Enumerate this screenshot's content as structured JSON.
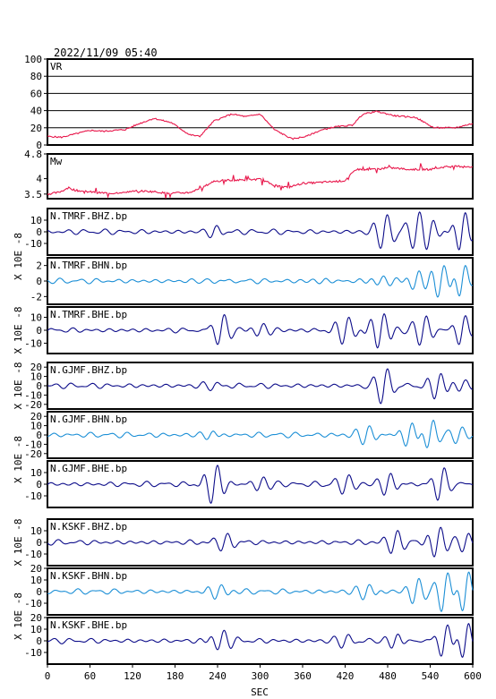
{
  "header": {
    "timestamp": "2022/11/09 05:40"
  },
  "colors": {
    "frame": "#000000",
    "vr_mw": "#e8174b",
    "bhz_bhe": "#0d0d8a",
    "bhn": "#1c8fd6"
  },
  "chart_data": {
    "type": "line",
    "xlabel": "SEC",
    "xlim": [
      0,
      600
    ],
    "xticks": [
      "0",
      "60",
      "120",
      "180",
      "240",
      "300",
      "360",
      "420",
      "480",
      "540",
      "600"
    ],
    "panels": [
      {
        "id": "vr",
        "label": "VR",
        "ylim": [
          0,
          100
        ],
        "yticks": [
          100,
          80,
          60,
          40,
          20,
          0
        ],
        "grid": true,
        "color": "#e8174b",
        "points": [
          [
            0,
            10
          ],
          [
            20,
            9
          ],
          [
            40,
            13
          ],
          [
            60,
            17
          ],
          [
            80,
            16
          ],
          [
            110,
            18
          ],
          [
            130,
            25
          ],
          [
            150,
            31
          ],
          [
            175,
            26
          ],
          [
            200,
            12
          ],
          [
            215,
            10
          ],
          [
            235,
            28
          ],
          [
            260,
            36
          ],
          [
            280,
            33
          ],
          [
            300,
            36
          ],
          [
            320,
            18
          ],
          [
            345,
            7
          ],
          [
            365,
            10
          ],
          [
            385,
            17
          ],
          [
            405,
            21
          ],
          [
            430,
            23
          ],
          [
            445,
            36
          ],
          [
            465,
            39
          ],
          [
            490,
            34
          ],
          [
            520,
            32
          ],
          [
            545,
            20
          ],
          [
            575,
            20
          ],
          [
            600,
            25
          ]
        ]
      },
      {
        "id": "mw",
        "label": "Mw",
        "ylim": [
          3.35,
          4.8
        ],
        "yticks": [
          4.8,
          4.0,
          3.5
        ],
        "grid": false,
        "color": "#e8174b",
        "points": [
          [
            0,
            3.5
          ],
          [
            15,
            3.55
          ],
          [
            30,
            3.7
          ],
          [
            40,
            3.62
          ],
          [
            55,
            3.58
          ],
          [
            70,
            3.55
          ],
          [
            90,
            3.52
          ],
          [
            110,
            3.57
          ],
          [
            130,
            3.6
          ],
          [
            150,
            3.58
          ],
          [
            170,
            3.52
          ],
          [
            200,
            3.55
          ],
          [
            218,
            3.7
          ],
          [
            235,
            3.92
          ],
          [
            255,
            3.95
          ],
          [
            280,
            3.96
          ],
          [
            300,
            3.98
          ],
          [
            325,
            3.75
          ],
          [
            340,
            3.72
          ],
          [
            360,
            3.85
          ],
          [
            380,
            3.87
          ],
          [
            400,
            3.9
          ],
          [
            420,
            3.93
          ],
          [
            435,
            4.3
          ],
          [
            460,
            4.3
          ],
          [
            485,
            4.35
          ],
          [
            510,
            4.3
          ],
          [
            540,
            4.3
          ],
          [
            560,
            4.38
          ],
          [
            585,
            4.4
          ],
          [
            600,
            4.38
          ]
        ]
      },
      {
        "id": "p3",
        "label": "N.TMRF.BHZ.bp",
        "ylim": [
          -20,
          20
        ],
        "yticks": [
          10,
          0,
          -10
        ],
        "color": "#0d0d8a",
        "seed": 3,
        "events": [
          [
            235,
            5,
            14
          ],
          [
            475,
            16,
            18
          ],
          [
            520,
            11,
            18
          ],
          [
            540,
            10,
            18
          ],
          [
            585,
            18,
            14
          ]
        ]
      },
      {
        "id": "p4",
        "label": "N.TMRF.BHN.bp",
        "ylim": [
          -3,
          3
        ],
        "yticks": [
          2,
          0,
          -2
        ],
        "color": "#1c8fd6",
        "seed": 7,
        "events": [
          [
            240,
            0.45,
            16
          ],
          [
            390,
            0.3,
            20
          ],
          [
            470,
            0.6,
            18
          ],
          [
            520,
            1.2,
            16
          ],
          [
            555,
            2.2,
            16
          ],
          [
            585,
            2.4,
            12
          ]
        ]
      },
      {
        "id": "p5",
        "label": "N.TMRF.BHE.bp",
        "ylim": [
          -18,
          18
        ],
        "yticks": [
          10,
          0,
          -10
        ],
        "color": "#0d0d8a",
        "seed": 11,
        "events": [
          [
            245,
            13,
            16
          ],
          [
            300,
            5,
            18
          ],
          [
            420,
            10,
            18
          ],
          [
            470,
            14,
            18
          ],
          [
            530,
            12,
            18
          ],
          [
            585,
            13,
            14
          ]
        ]
      },
      {
        "id": "p6",
        "label": "N.GJMF.BHZ.bp",
        "ylim": [
          -25,
          25
        ],
        "yticks": [
          20,
          10,
          0,
          -10,
          -20
        ],
        "color": "#0d0d8a",
        "seed": 17,
        "events": [
          [
            235,
            4,
            18
          ],
          [
            475,
            20,
            16
          ],
          [
            550,
            14,
            16
          ],
          [
            585,
            5,
            16
          ]
        ]
      },
      {
        "id": "p7",
        "label": "N.GJMF.BHN.bp",
        "ylim": [
          -25,
          25
        ],
        "yticks": [
          20,
          10,
          0,
          -10,
          -20
        ],
        "color": "#1c8fd6",
        "seed": 23,
        "events": [
          [
            230,
            5,
            16
          ],
          [
            450,
            10,
            18
          ],
          [
            510,
            14,
            16
          ],
          [
            540,
            20,
            14
          ],
          [
            580,
            7,
            16
          ]
        ]
      },
      {
        "id": "p8",
        "label": "N.GJMF.BHE.bp",
        "ylim": [
          -20,
          20
        ],
        "yticks": [
          10,
          0,
          -10
        ],
        "color": "#0d0d8a",
        "seed": 29,
        "events": [
          [
            235,
            17,
            16
          ],
          [
            300,
            7,
            18
          ],
          [
            420,
            8,
            18
          ],
          [
            480,
            10,
            16
          ],
          [
            555,
            15,
            14
          ]
        ]
      },
      {
        "id": "p9",
        "label": "N.KSKF.BHZ.bp",
        "ylim": [
          -20,
          20
        ],
        "yticks": [
          10,
          0,
          -10
        ],
        "color": "#0d0d8a",
        "seed": 31,
        "events": [
          [
            250,
            6,
            18
          ],
          [
            490,
            10,
            18
          ],
          [
            550,
            14,
            16
          ],
          [
            590,
            8,
            14
          ]
        ]
      },
      {
        "id": "p10",
        "label": "N.KSKF.BHN.bp",
        "ylim": [
          -20,
          20
        ],
        "yticks": [
          20,
          10,
          0,
          -10
        ],
        "color": "#1c8fd6",
        "seed": 37,
        "events": [
          [
            240,
            6,
            18
          ],
          [
            450,
            7,
            18
          ],
          [
            520,
            13,
            16
          ],
          [
            560,
            18,
            14
          ],
          [
            590,
            20,
            12
          ]
        ]
      },
      {
        "id": "p11",
        "label": "N.KSKF.BHE.bp",
        "ylim": [
          -20,
          20
        ],
        "yticks": [
          20,
          10,
          0,
          -10
        ],
        "color": "#0d0d8a",
        "seed": 41,
        "events": [
          [
            245,
            8,
            18
          ],
          [
            420,
            6,
            18
          ],
          [
            490,
            9,
            16
          ],
          [
            560,
            16,
            14
          ],
          [
            590,
            18,
            12
          ]
        ]
      }
    ],
    "side_labels": [
      {
        "text": "X 10E -8",
        "panels": [
          "p3",
          "p4"
        ]
      },
      {
        "text": "X 10E -8",
        "panels": [
          "p5"
        ]
      },
      {
        "text": "X 10E -8",
        "panels": [
          "p6"
        ]
      },
      {
        "text": "X 10E -8",
        "panels": [
          "p7",
          "p8"
        ]
      },
      {
        "text": "X 10E -8",
        "panels": [
          "p9"
        ]
      },
      {
        "text": "X 10E -8",
        "panels": [
          "p10",
          "p11"
        ]
      }
    ]
  }
}
